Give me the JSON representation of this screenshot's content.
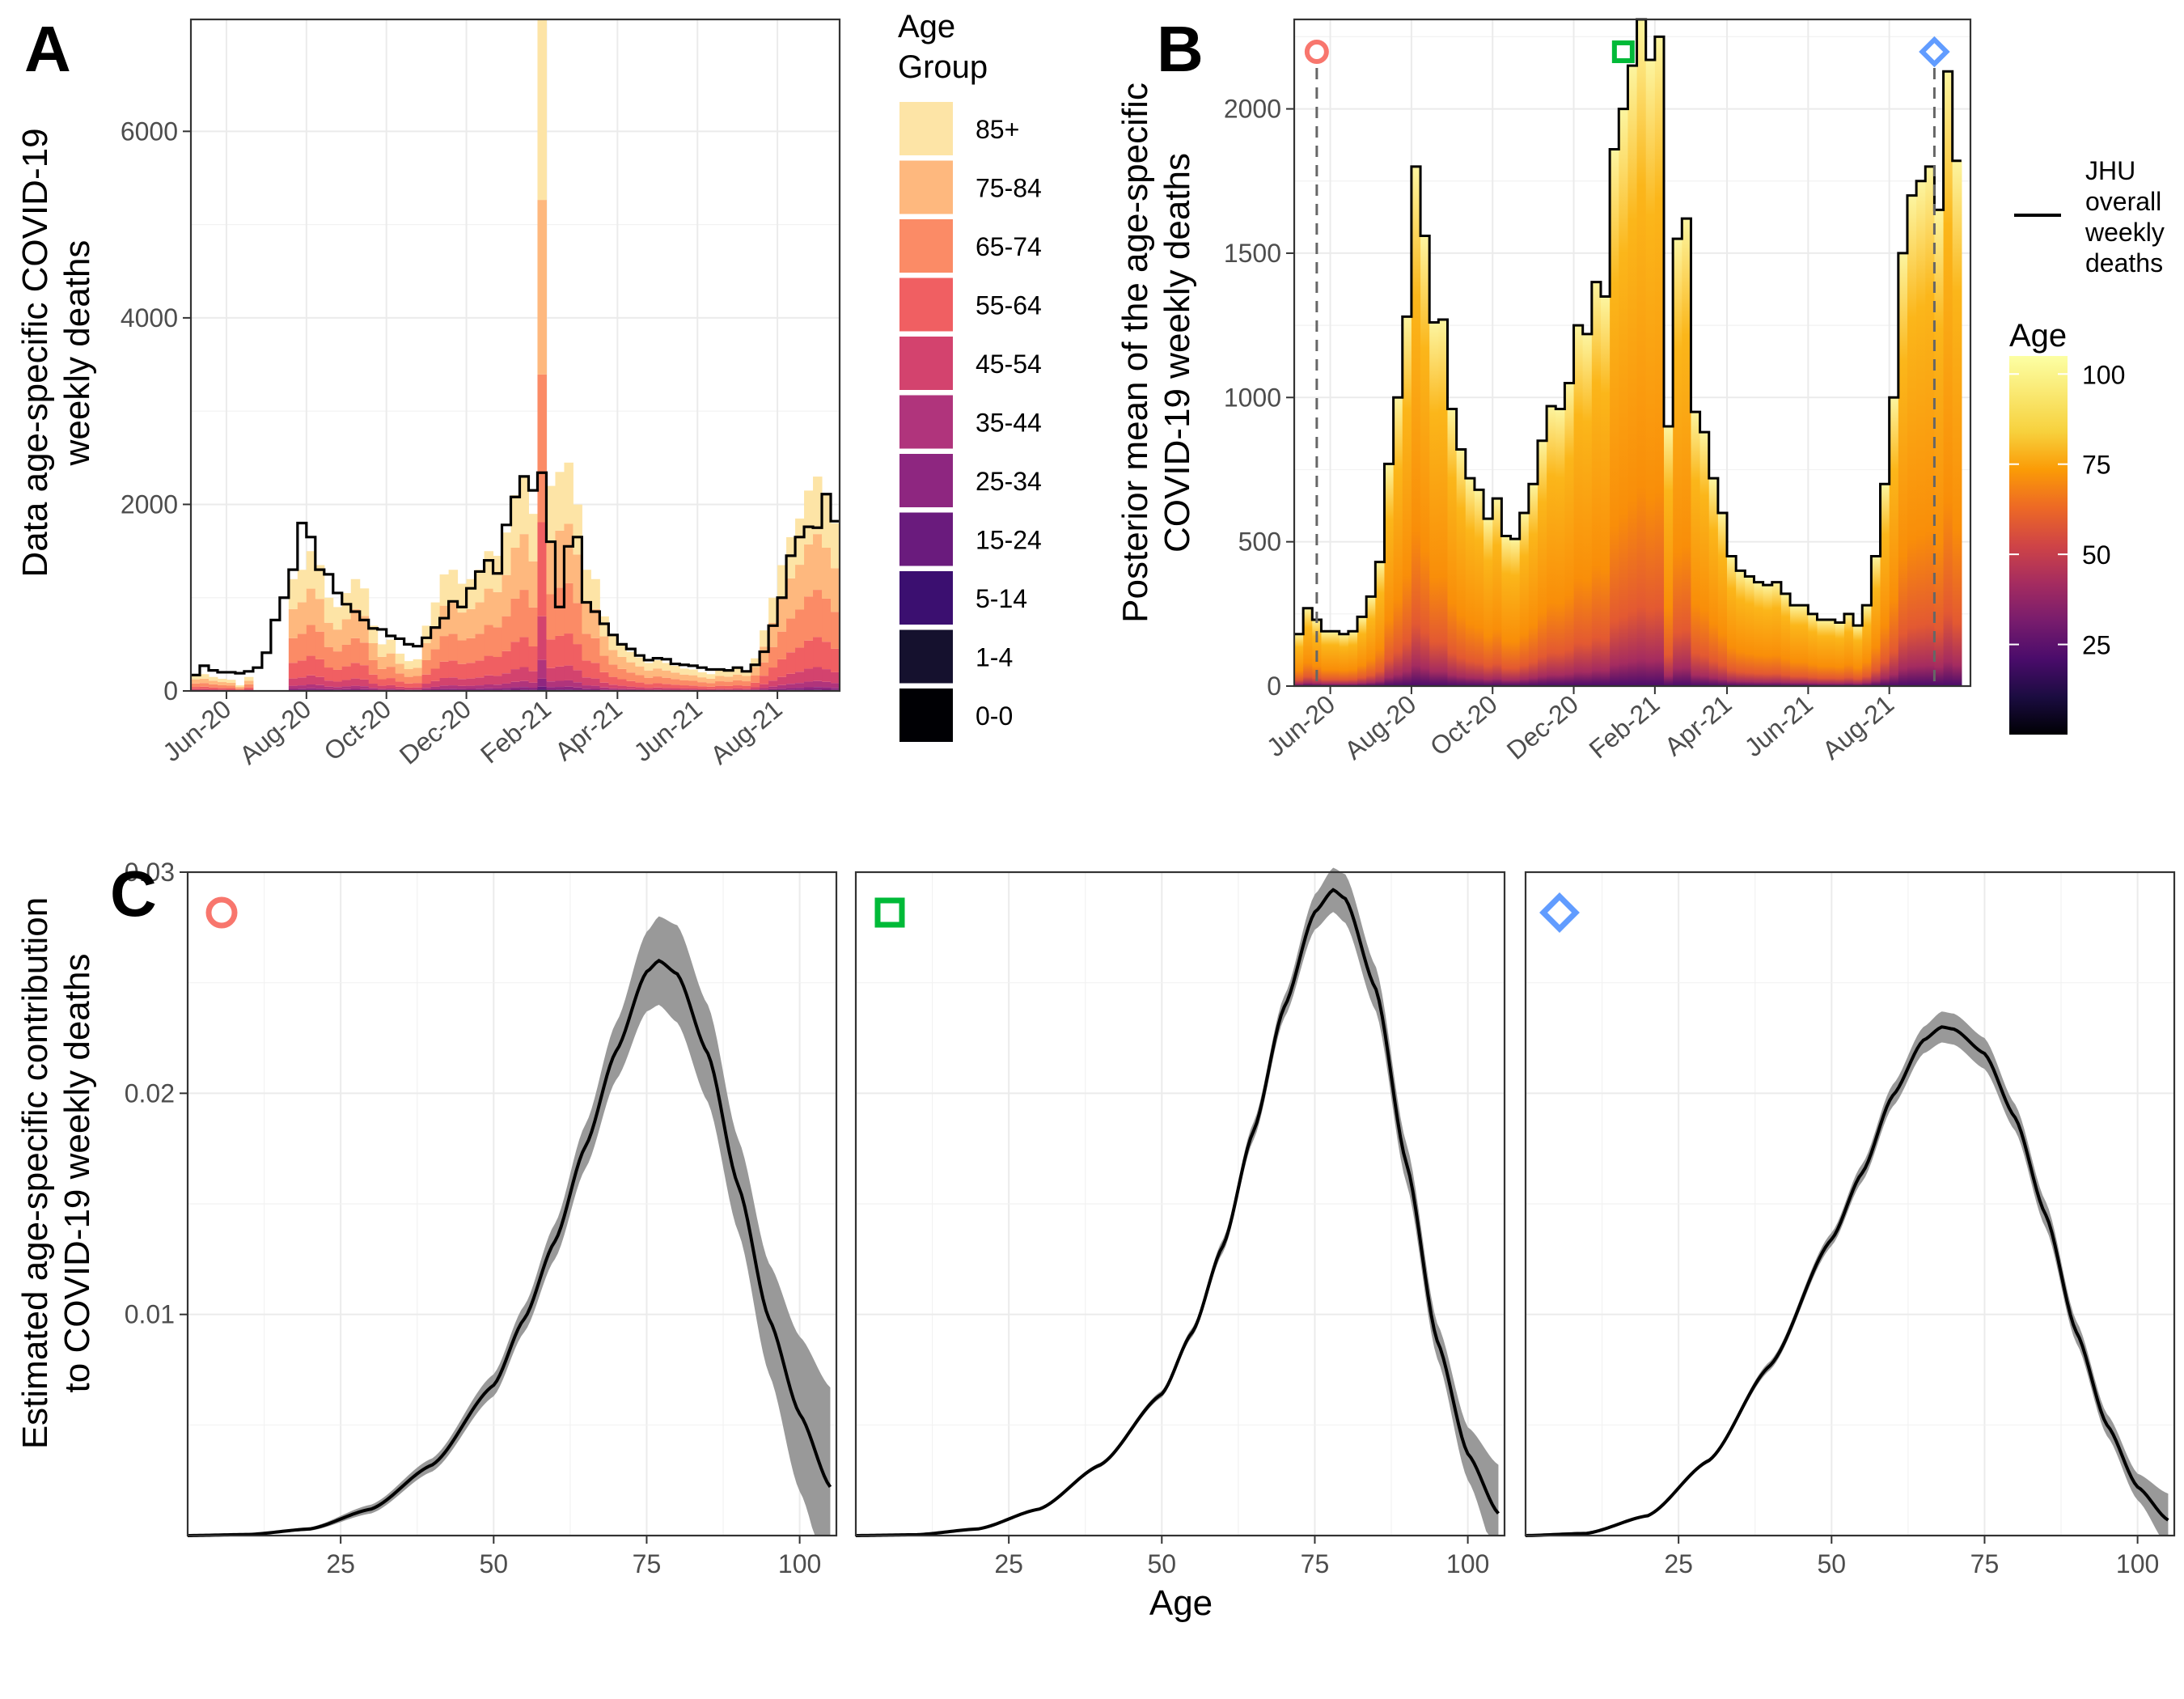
{
  "panels": {
    "A": {
      "letter": "A",
      "ylabel_line1": "Data age-specific COVID-19",
      "ylabel_line2": "weekly deaths"
    },
    "B": {
      "letter": "B",
      "ylabel_line1": "Posterior mean of the age-specific",
      "ylabel_line2": "COVID-19 weekly deaths"
    },
    "C": {
      "letter": "C",
      "ylabel_line1": "Estimated age-specific contribution",
      "ylabel_line2": "to COVID-19 weekly deaths",
      "xlabel": "Age"
    }
  },
  "legend_age_group": {
    "title_line1": "Age",
    "title_line2": "Group",
    "items": [
      {
        "label": "85+",
        "color": "#fde4a6"
      },
      {
        "label": "75-84",
        "color": "#feb87e"
      },
      {
        "label": "65-74",
        "color": "#fb8b66"
      },
      {
        "label": "55-64",
        "color": "#f05f62"
      },
      {
        "label": "45-54",
        "color": "#d3436e"
      },
      {
        "label": "35-44",
        "color": "#b0347c"
      },
      {
        "label": "25-34",
        "color": "#8e2680"
      },
      {
        "label": "15-24",
        "color": "#6a1b7d"
      },
      {
        "label": "5-14",
        "color": "#3b0f70"
      },
      {
        "label": "1-4",
        "color": "#15112e"
      },
      {
        "label": "0-0",
        "color": "#000004"
      }
    ]
  },
  "legend_jhu": {
    "line1": "JHU",
    "line2": "overall",
    "line3": "weekly",
    "line4": "deaths"
  },
  "legend_age": {
    "title": "Age",
    "ticks": [
      "100",
      "75",
      "50",
      "25"
    ],
    "tick_values": [
      100,
      75,
      50,
      25
    ],
    "range": [
      0,
      105
    ]
  },
  "colors": {
    "red_marker": "#f8766d",
    "green_marker": "#00ba38",
    "blue_marker": "#619cff",
    "band": "#999999",
    "line": "#000000"
  },
  "chart_data": [
    {
      "id": "A",
      "type": "bar",
      "title": "",
      "ylabel": "Data age-specific COVID-19 weekly deaths",
      "xlabel": "",
      "x_start_week": "2020-05-01",
      "x_tick_labels": [
        "Jun-20",
        "Aug-20",
        "Oct-20",
        "Dec-20",
        "Feb-21",
        "Apr-21",
        "Jun-21",
        "Aug-21"
      ],
      "x_tick_weeks": [
        4,
        13,
        22,
        31,
        40,
        48,
        57,
        66
      ],
      "x_range_weeks": [
        0,
        73
      ],
      "ylim": [
        0,
        7200
      ],
      "y_ticks": [
        0,
        2000,
        4000,
        6000
      ],
      "jhu_weekly_deaths": [
        170,
        270,
        220,
        200,
        200,
        190,
        210,
        250,
        410,
        760,
        1000,
        1300,
        1800,
        1650,
        1300,
        1250,
        1050,
        930,
        850,
        760,
        670,
        660,
        590,
        560,
        500,
        480,
        570,
        680,
        780,
        960,
        900,
        1100,
        1280,
        1400,
        1260,
        1780,
        2080,
        2300,
        2150,
        2340,
        1600,
        900,
        1550,
        1650,
        950,
        850,
        720,
        600,
        500,
        450,
        380,
        330,
        350,
        340,
        290,
        280,
        270,
        250,
        230,
        230,
        220,
        250,
        210,
        280,
        420,
        700,
        1000,
        1450,
        1650,
        1760,
        1750,
        2110,
        1820
      ],
      "data_weekly_total": [
        170,
        180,
        150,
        130,
        120,
        60,
        150,
        0,
        0,
        0,
        0,
        1200,
        1300,
        1500,
        1350,
        1000,
        900,
        1050,
        1200,
        1100,
        700,
        500,
        550,
        400,
        320,
        340,
        700,
        950,
        1250,
        1300,
        1150,
        1200,
        1300,
        1500,
        1450,
        1700,
        2100,
        2300,
        1900,
        7200,
        2200,
        2350,
        2450,
        2000,
        1300,
        1200,
        800,
        600,
        500,
        420,
        360,
        300,
        330,
        300,
        270,
        240,
        230,
        200,
        180,
        220,
        210,
        240,
        220,
        350,
        650,
        1000,
        1350,
        1650,
        1850,
        2150,
        2300,
        2100,
        1800
      ],
      "age_groups": [
        "0-0",
        "1-4",
        "5-14",
        "15-24",
        "25-34",
        "35-44",
        "45-54",
        "55-64",
        "65-74",
        "75-84",
        "85+"
      ],
      "age_group_shares": [
        0.0004,
        0.0006,
        0.0012,
        0.004,
        0.012,
        0.028,
        0.065,
        0.14,
        0.22,
        0.26,
        0.268
      ],
      "series_line": "JHU overall weekly deaths"
    },
    {
      "id": "B",
      "type": "area",
      "title": "",
      "ylabel": "Posterior mean of the age-specific COVID-19 weekly deaths",
      "xlabel": "",
      "x_start_week": "2020-05-01",
      "x_tick_labels": [
        "Jun-20",
        "Aug-20",
        "Oct-20",
        "Dec-20",
        "Feb-21",
        "Apr-21",
        "Jun-21",
        "Aug-21"
      ],
      "x_tick_weeks": [
        4,
        13,
        22,
        31,
        40,
        48,
        57,
        66
      ],
      "x_range_weeks": [
        0,
        75
      ],
      "ylim": [
        0,
        2310
      ],
      "y_ticks": [
        0,
        500,
        1000,
        1500,
        2000
      ],
      "weekly_deaths": [
        180,
        270,
        230,
        190,
        190,
        180,
        190,
        240,
        310,
        430,
        770,
        1000,
        1280,
        1800,
        1560,
        1260,
        1270,
        960,
        820,
        720,
        680,
        580,
        650,
        520,
        510,
        600,
        700,
        850,
        970,
        960,
        1050,
        1250,
        1220,
        1400,
        1350,
        1860,
        2000,
        2150,
        2350,
        2170,
        2250,
        900,
        1550,
        1620,
        950,
        880,
        720,
        600,
        450,
        400,
        380,
        360,
        350,
        360,
        320,
        280,
        280,
        250,
        230,
        230,
        220,
        250,
        210,
        280,
        450,
        700,
        1000,
        1500,
        1700,
        1750,
        1800,
        1650,
        2130,
        1820
      ],
      "color_scale": "inferno (Age 0-105)",
      "markers": [
        {
          "shape": "circle",
          "color": "#f8766d",
          "week": 2.5
        },
        {
          "shape": "square",
          "color": "#00ba38",
          "week": 36.5
        },
        {
          "shape": "diamond",
          "color": "#619cff",
          "week": 71
        }
      ],
      "series_line": "JHU overall weekly deaths"
    },
    {
      "id": "C",
      "type": "line",
      "title": "",
      "ylabel": "Estimated age-specific contribution to COVID-19 weekly deaths",
      "xlabel": "Age",
      "x_range": [
        0,
        106
      ],
      "x_ticks": [
        25,
        50,
        75,
        100
      ],
      "ylim": [
        0,
        0.03
      ],
      "y_ticks": [
        0.01,
        0.02,
        0.03
      ],
      "y_tick_labels": [
        "0.01",
        "0.02",
        "0.03"
      ],
      "series": [
        {
          "name": "circle week",
          "marker": "circle",
          "color": "#f8766d",
          "age": [
            0,
            10,
            20,
            30,
            40,
            50,
            55,
            60,
            65,
            70,
            75,
            77,
            80,
            85,
            90,
            95,
            100,
            105
          ],
          "mean": [
            0,
            5e-05,
            0.0003,
            0.0012,
            0.0032,
            0.0068,
            0.0098,
            0.0133,
            0.0176,
            0.0219,
            0.0255,
            0.026,
            0.0254,
            0.0218,
            0.0158,
            0.0098,
            0.0055,
            0.0022
          ],
          "band_half_width": [
            0,
            2e-05,
            8e-05,
            0.0002,
            0.0003,
            0.0005,
            0.0006,
            0.0008,
            0.001,
            0.0013,
            0.0018,
            0.002,
            0.0022,
            0.0022,
            0.0021,
            0.0025,
            0.0035,
            0.0045
          ]
        },
        {
          "name": "square week",
          "marker": "square",
          "color": "#00ba38",
          "age": [
            0,
            10,
            20,
            30,
            40,
            50,
            55,
            60,
            65,
            70,
            75,
            78,
            80,
            85,
            90,
            95,
            100,
            105
          ],
          "mean": [
            0,
            4e-05,
            0.0003,
            0.0012,
            0.0032,
            0.0064,
            0.0092,
            0.0131,
            0.0183,
            0.0239,
            0.0282,
            0.0292,
            0.0288,
            0.0247,
            0.0168,
            0.0088,
            0.0037,
            0.001
          ],
          "band_half_width": [
            0,
            1e-05,
            3e-05,
            6e-05,
            0.0001,
            0.00015,
            0.0002,
            0.0003,
            0.0004,
            0.0005,
            0.0008,
            0.001,
            0.0011,
            0.001,
            0.0009,
            0.0008,
            0.0012,
            0.0022
          ]
        },
        {
          "name": "diamond week",
          "marker": "diamond",
          "color": "#619cff",
          "age": [
            0,
            10,
            20,
            30,
            40,
            50,
            55,
            60,
            65,
            68,
            70,
            75,
            80,
            85,
            90,
            95,
            100,
            105
          ],
          "mean": [
            0,
            0.0001,
            0.0009,
            0.0034,
            0.0077,
            0.0134,
            0.0164,
            0.0199,
            0.0224,
            0.023,
            0.0229,
            0.0218,
            0.0189,
            0.0145,
            0.0092,
            0.005,
            0.0022,
            0.0007
          ],
          "band_half_width": [
            0,
            2e-05,
            5e-05,
            0.0001,
            0.0002,
            0.0003,
            0.0004,
            0.0005,
            0.0006,
            0.0007,
            0.0007,
            0.0007,
            0.0006,
            0.0006,
            0.0005,
            0.0005,
            0.0006,
            0.0012
          ]
        }
      ]
    }
  ]
}
